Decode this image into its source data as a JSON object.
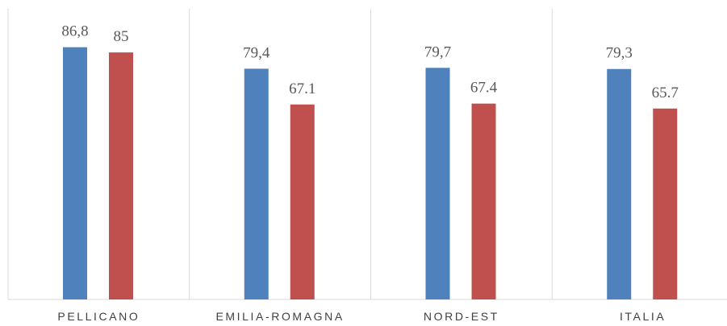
{
  "chart_data": {
    "type": "bar",
    "categories": [
      "PELLICANO",
      "EMILIA-ROMAGNA",
      "NORD-EST",
      "ITALIA"
    ],
    "series": [
      {
        "color": "#4f81bd",
        "values": [
          86.8,
          79.4,
          79.7,
          79.3
        ],
        "value_labels": [
          "86,8",
          "79,4",
          "79,7",
          "79,3"
        ]
      },
      {
        "color": "#c0504d",
        "values": [
          85,
          67.1,
          67.4,
          65.7
        ]
      }
    ],
    "ylim": [
      0,
      100
    ]
  }
}
